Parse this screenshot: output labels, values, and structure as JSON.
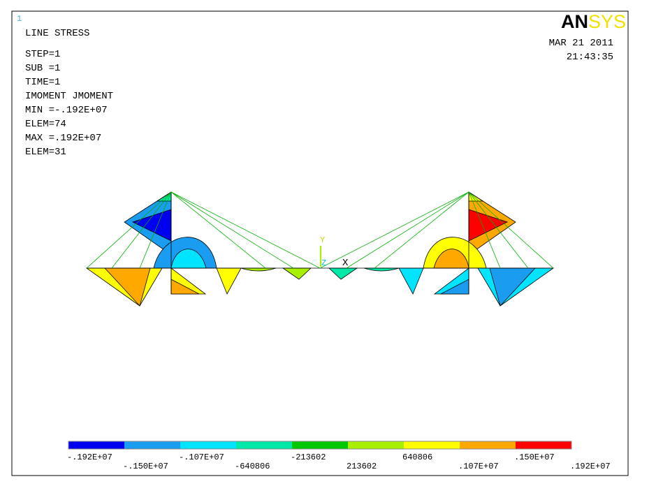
{
  "window_number": "1",
  "header": {
    "title": "LINE STRESS",
    "lines": [
      "STEP=1",
      "SUB =1",
      "TIME=1",
      "IMOMENT JMOMENT",
      "MIN =-.192E+07",
      "ELEM=74",
      "MAX =.192E+07",
      "ELEM=31"
    ]
  },
  "logo": {
    "an": "AN",
    "sys": "SYS"
  },
  "date": "MAR 21 2011",
  "time": "21:43:35",
  "triad": {
    "y": "Y",
    "z": "Z",
    "x": "X"
  },
  "legend": {
    "colors": [
      "#0000f0",
      "#1a9cf0",
      "#00e4ff",
      "#00e8a8",
      "#00c800",
      "#a8f000",
      "#ffff00",
      "#ffa800",
      "#ff0000"
    ],
    "labels": [
      "-.192E+07",
      "-.150E+07",
      "-.107E+07",
      "-640806",
      "-213602",
      "213602",
      "640806",
      ".107E+07",
      ".150E+07",
      ".192E+07"
    ]
  }
}
